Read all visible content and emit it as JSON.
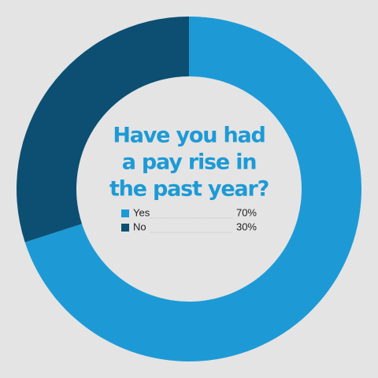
{
  "chart_data": {
    "type": "donut",
    "title": [
      "Have you had",
      "a pay rise in",
      "the past year?"
    ],
    "categories": [
      "Yes",
      "No"
    ],
    "values": [
      70,
      30
    ],
    "value_labels": [
      "70%",
      "30%"
    ],
    "colors": [
      "#1d9ad6",
      "#0c4f72"
    ]
  }
}
